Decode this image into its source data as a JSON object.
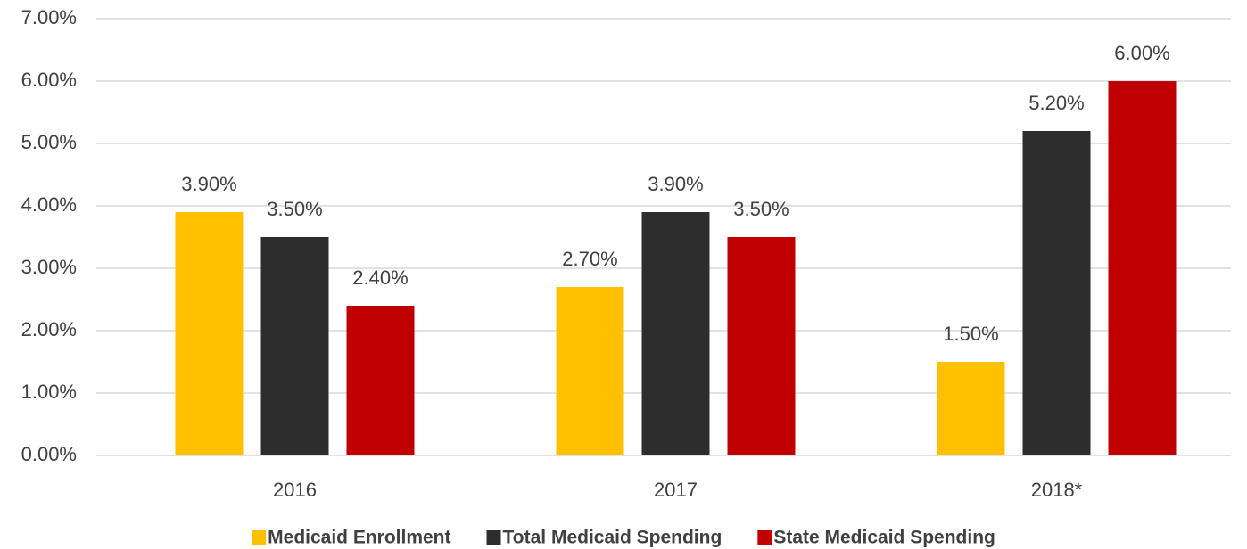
{
  "chart_data": {
    "type": "bar",
    "categories": [
      "2016",
      "2017",
      "2018*"
    ],
    "series": [
      {
        "name": "Medicaid Enrollment",
        "color": "#ffc000",
        "values": [
          3.9,
          2.7,
          1.5
        ],
        "value_labels": [
          "3.90%",
          "2.70%",
          "1.50%"
        ]
      },
      {
        "name": "Total Medicaid Spending",
        "color": "#2d2d2d",
        "values": [
          3.5,
          3.9,
          5.2
        ],
        "value_labels": [
          "3.50%",
          "3.90%",
          "5.20%"
        ]
      },
      {
        "name": "State Medicaid Spending",
        "color": "#c00000",
        "values": [
          2.4,
          3.5,
          6.0
        ],
        "value_labels": [
          "2.40%",
          "3.50%",
          "6.00%"
        ]
      }
    ],
    "ylim": [
      0,
      7
    ],
    "yticks": [
      {
        "value": 0,
        "label": "0.00%"
      },
      {
        "value": 1,
        "label": "1.00%"
      },
      {
        "value": 2,
        "label": "2.00%"
      },
      {
        "value": 3,
        "label": "3.00%"
      },
      {
        "value": 4,
        "label": "4.00%"
      },
      {
        "value": 5,
        "label": "5.00%"
      },
      {
        "value": 6,
        "label": "6.00%"
      },
      {
        "value": 7,
        "label": "7.00%"
      }
    ],
    "grid": true,
    "legend": "bottom"
  }
}
